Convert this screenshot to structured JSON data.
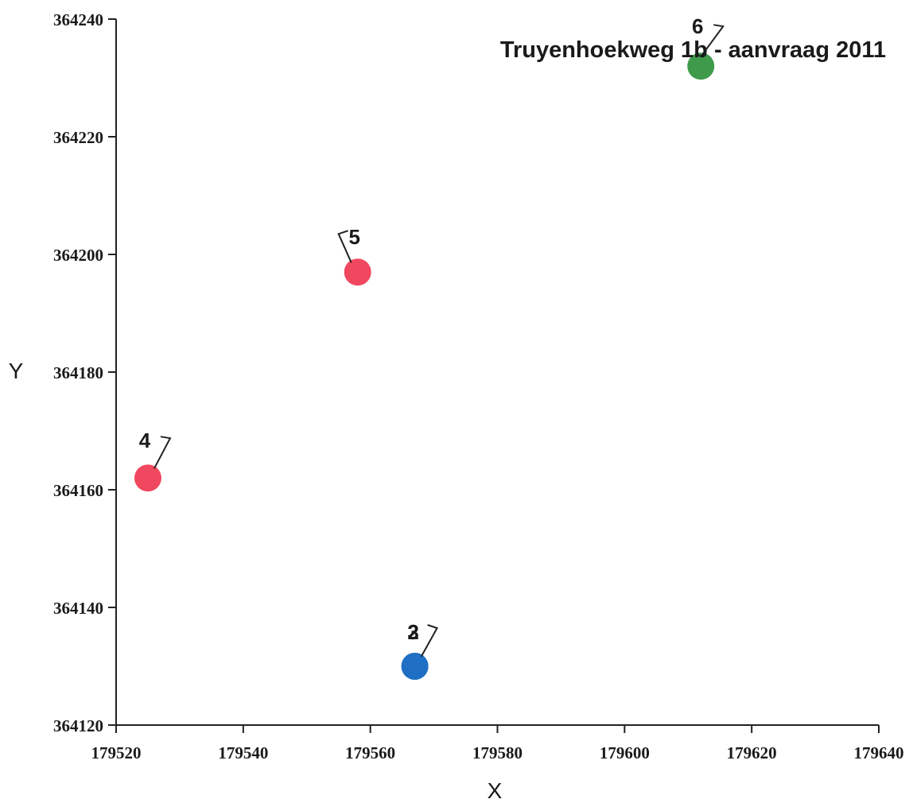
{
  "chart_data": {
    "type": "scatter",
    "title": "",
    "xlabel": "X",
    "ylabel": "Y",
    "xlim": [
      179520,
      179640
    ],
    "ylim": [
      364120,
      364240
    ],
    "xticks": [
      179520,
      179540,
      179560,
      179580,
      179600,
      179620,
      179640
    ],
    "yticks": [
      364120,
      364140,
      364160,
      364180,
      364200,
      364220,
      364240
    ],
    "xtick_labels": [
      "179520",
      "179540",
      "179560",
      "179580",
      "179600",
      "179620",
      "179640"
    ],
    "ytick_labels": [
      "364120",
      "364140",
      "364160",
      "364180",
      "364200",
      "364220",
      "364240"
    ],
    "grid": false,
    "points": [
      {
        "label": "2",
        "x": 179567,
        "y": 364130,
        "color": "#1f6fc4"
      },
      {
        "label": "3",
        "x": 179567,
        "y": 364130,
        "color": "#1f6fc4"
      },
      {
        "label": "4",
        "x": 179525,
        "y": 364162,
        "color": "#f0485f"
      },
      {
        "label": "5",
        "x": 179558,
        "y": 364197,
        "color": "#f0485f"
      },
      {
        "label": "6",
        "x": 179612,
        "y": 364232,
        "color": "#3f9a4b"
      }
    ],
    "annotation": "Truyenhoekweg 1b - aanvraag 2011"
  }
}
